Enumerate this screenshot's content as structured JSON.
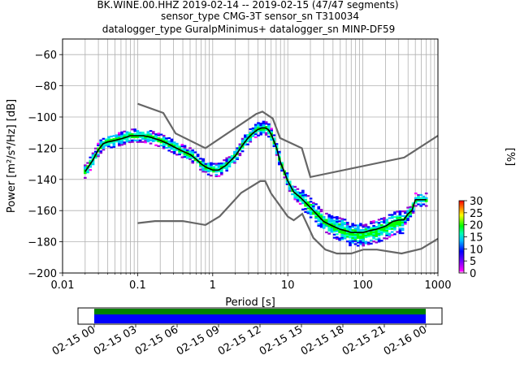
{
  "chart_data": {
    "type": "heatmap",
    "title_lines": [
      "BK.WINE.00.HHZ   2019-02-14 -- 2019-02-15  (47/47 segments)",
      "sensor_type CMG-3T sensor_sn T310034",
      "datalogger_type GuralpMinimus+ datalogger_sn MINP-DF59"
    ],
    "xlabel": "Period [s]",
    "ylabel": "Power [m²/s⁴/Hz] [dB]",
    "xscale": "log",
    "xlim": [
      0.01,
      1000
    ],
    "ylim": [
      -200,
      -50
    ],
    "x_ticks": [
      0.01,
      0.1,
      1,
      10,
      100,
      1000
    ],
    "x_tick_labels": [
      "0.01",
      "0.1",
      "1",
      "10",
      "100",
      "1000"
    ],
    "y_ticks": [
      -200,
      -180,
      -160,
      -140,
      -120,
      -100,
      -80,
      -60
    ],
    "y_tick_labels": [
      "−200",
      "−180",
      "−160",
      "−140",
      "−120",
      "−100",
      "−80",
      "−60"
    ],
    "grid": true,
    "noise_models": [
      {
        "name": "NHNM",
        "x": [
          0.1,
          0.22,
          0.32,
          0.8,
          3.8,
          4.6,
          6.3,
          7.9,
          15.4,
          20,
          354.8,
          1000
        ],
        "y": [
          -91.5,
          -97.4,
          -110.5,
          -120,
          -98,
          -96.5,
          -101,
          -113.5,
          -120,
          -138.5,
          -126,
          -112
        ]
      },
      {
        "name": "NLNM",
        "x": [
          0.1,
          0.17,
          0.4,
          0.8,
          1.24,
          2.4,
          4.3,
          5,
          6,
          10,
          12,
          15.6,
          21.9,
          31.6,
          45,
          70,
          101,
          154,
          328,
          600,
          1000
        ],
        "y": [
          -168,
          -166.7,
          -166.7,
          -169.2,
          -163.7,
          -148.6,
          -141.1,
          -141.1,
          -149,
          -163.8,
          -166.2,
          -162.1,
          -177.5,
          -185,
          -187.5,
          -187.5,
          -185,
          -185,
          -187.5,
          -184.5,
          -178
        ]
      }
    ],
    "mean_curve": {
      "x": [
        0.02,
        0.025,
        0.03,
        0.035,
        0.04,
        0.05,
        0.06,
        0.07,
        0.08,
        0.1,
        0.12,
        0.15,
        0.2,
        0.25,
        0.3,
        0.4,
        0.5,
        0.6,
        0.7,
        0.8,
        1.0,
        1.2,
        1.5,
        2.0,
        2.5,
        3.0,
        3.5,
        4.0,
        4.5,
        5.0,
        5.5,
        6.0,
        7.0,
        8.0,
        10,
        12,
        15,
        20,
        25,
        30,
        40,
        50,
        60,
        70,
        80,
        100,
        120,
        150,
        200,
        250,
        300,
        350,
        400,
        450,
        500,
        600,
        700
      ],
      "y": [
        -135,
        -128,
        -121,
        -117,
        -116,
        -115,
        -114,
        -113,
        -112,
        -112,
        -112,
        -113,
        -115,
        -117,
        -119,
        -122,
        -124,
        -127,
        -130,
        -132,
        -134,
        -134,
        -131,
        -125,
        -118,
        -113,
        -110,
        -108,
        -107,
        -107,
        -108,
        -111,
        -119,
        -129,
        -141,
        -148,
        -152,
        -158,
        -163,
        -167,
        -170,
        -172,
        -173,
        -174,
        -174,
        -174,
        -173,
        -172,
        -170,
        -167,
        -166,
        -166,
        -162,
        -160,
        -153,
        -153,
        -153
      ]
    },
    "colorbar": {
      "label": "[%]",
      "min": 0,
      "max": 30,
      "ticks": [
        0,
        5,
        10,
        15,
        20,
        25,
        30
      ],
      "tick_labels": [
        "0",
        "5",
        "10",
        "15",
        "20",
        "25",
        "30"
      ]
    },
    "coverage": {
      "x_tick_labels": [
        "02-15 00",
        "02-15 03",
        "02-15 06",
        "02-15 09",
        "02-15 12",
        "02-15 15",
        "02-15 18",
        "02-15 21",
        "02-16 00"
      ],
      "data_color": "#0000ff",
      "used_color": "#008000"
    },
    "colors": {
      "noise_model": "#666666",
      "mean_curve": "#000000",
      "grid": "#b0b0b0"
    }
  }
}
